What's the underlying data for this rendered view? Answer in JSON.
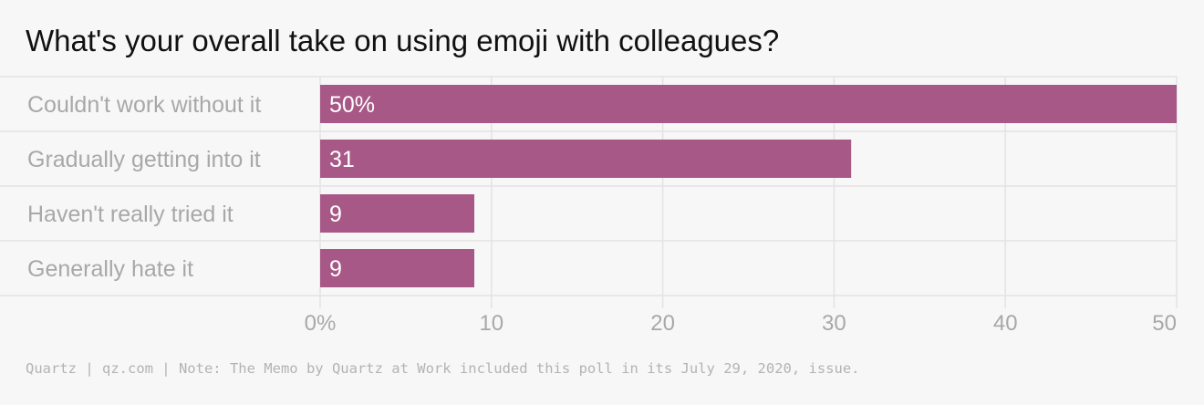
{
  "title": "What's your overall take on using emoji with colleagues?",
  "footer": "Quartz | qz.com | Note: The Memo by Quartz at Work included this poll in its July 29, 2020, issue.",
  "colors": {
    "bar": "#a85887",
    "category_text": "#a8a8a8",
    "tick_text": "#a8a8a8",
    "grid": "#e3e3e3",
    "data_label": "#ffffff",
    "background": "#f7f7f7"
  },
  "chart_data": {
    "type": "bar",
    "orientation": "horizontal",
    "title": "What's your overall take on using emoji with colleagues?",
    "categories": [
      "Couldn't work without it",
      "Gradually getting into it",
      "Haven't really tried it",
      "Generally hate it"
    ],
    "values": [
      50,
      31,
      9,
      9
    ],
    "data_labels": [
      "50%",
      "31",
      "9",
      "9"
    ],
    "xlim": [
      0,
      50
    ],
    "x_ticks": [
      0,
      10,
      20,
      30,
      40,
      50
    ],
    "x_tick_labels": [
      "0%",
      "10",
      "20",
      "30",
      "40",
      "50"
    ],
    "xlabel": "",
    "ylabel": "",
    "grid": true,
    "legend": "none"
  }
}
